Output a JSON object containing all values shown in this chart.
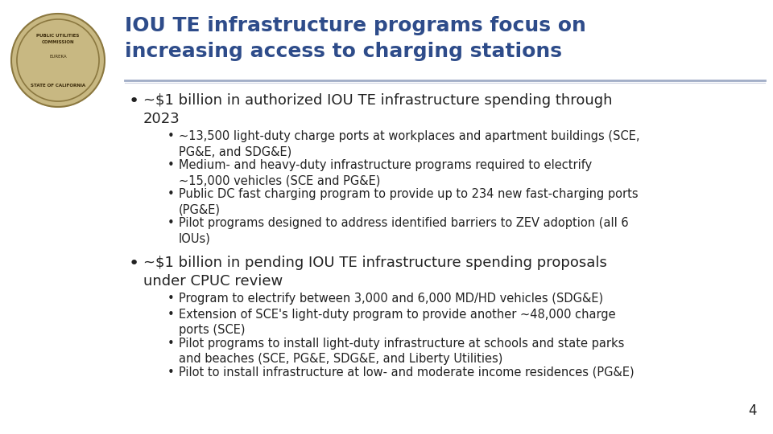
{
  "title_line1": "IOU TE infrastructure programs focus on",
  "title_line2": "increasing access to charging stations",
  "title_color": "#2E4C8A",
  "title_fontsize": 18,
  "background_color": "#FFFFFF",
  "separator_color": "#8898B8",
  "bullet1_main": "~$1 billion in authorized IOU TE infrastructure spending through\n2023",
  "bullet1_subs": [
    "~13,500 light-duty charge ports at workplaces and apartment buildings (SCE,\nPG&E, and SDG&E)",
    "Medium- and heavy-duty infrastructure programs required to electrify\n~15,000 vehicles (SCE and PG&E)",
    "Public DC fast charging program to provide up to 234 new fast-charging ports\n(PG&E)",
    "Pilot programs designed to address identified barriers to ZEV adoption (all 6\nIOUs)"
  ],
  "bullet2_main": "~$1 billion in pending IOU TE infrastructure spending proposals\nunder CPUC review",
  "bullet2_subs": [
    "Program to electrify between 3,000 and 6,000 MD/HD vehicles (SDG&E)",
    "Extension of SCE's light-duty program to provide another ~48,000 charge\nports (SCE)",
    "Pilot programs to install light-duty infrastructure at schools and state parks\nand beaches (SCE, PG&E, SDG&E, and Liberty Utilities)",
    "Pilot to install infrastructure at low- and moderate income residences (PG&E)"
  ],
  "page_number": "4",
  "main_bullet_fontsize": 13,
  "sub_bullet_fontsize": 10.5,
  "text_color": "#222222",
  "sub_text_color": "#222222",
  "seal_color": "#C8B882",
  "seal_border": "#8B7840"
}
